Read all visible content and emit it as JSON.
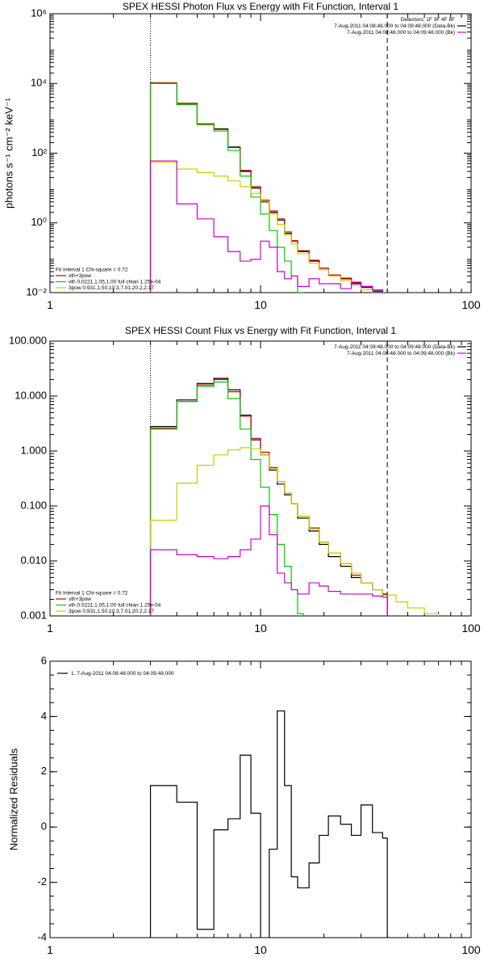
{
  "chart_data": [
    {
      "type": "line",
      "title": "SPEX HESSI Photon Flux vs Energy with Fit Function, Interval 1",
      "xlabel": "",
      "ylabel": "photons s⁻¹ cm⁻² keV⁻¹",
      "xscale": "log",
      "yscale": "log",
      "xlim": [
        1,
        100
      ],
      "ylim": [
        0.01,
        1000000
      ],
      "xticks": [
        {
          "v": 1,
          "label": "1"
        },
        {
          "v": 10,
          "label": "10"
        },
        {
          "v": 100,
          "label": "100"
        }
      ],
      "yticks": [
        {
          "v": 0.01,
          "label": "10⁻²"
        },
        {
          "v": 1,
          "label": "10⁰"
        },
        {
          "v": 100,
          "label": "10²"
        },
        {
          "v": 10000,
          "label": "10⁴"
        },
        {
          "v": 1000000,
          "label": "10⁶"
        }
      ],
      "vlines": [
        {
          "x": 3.0,
          "style": "dotted"
        },
        {
          "x": 40.0,
          "style": "dashed"
        }
      ],
      "legend_topright": [
        {
          "text": "Detectors: 1F 3F 4F 8F",
          "color": "#000000"
        },
        {
          "text": "7-Aug-2011 04:08:48.000 to 04:09:48.000 (Data-Bk)",
          "color": "#000000"
        },
        {
          "text": "7-Aug-2011 04:08:48.000 to 04:09:48.000 (Bk)",
          "color": "#cc00cc"
        }
      ],
      "legend_bottomleft": [
        {
          "text": "Fit Interval 1    Chi-square = 0.72",
          "color": "#000000"
        },
        {
          "text": "vth+3pow",
          "color": "#cc0000"
        },
        {
          "text": "vth 0.0221,1.05,1.00  full chian 1.25e-04",
          "color": "#00cc00"
        },
        {
          "text": "3pow 0.931,1.50,10.3,7.01,20.2,2.17",
          "color": "#cccc00"
        }
      ],
      "series": [
        {
          "name": "Data-Bk",
          "color": "#000000",
          "edges": [
            3,
            4,
            5,
            6,
            7,
            8,
            9,
            10,
            11,
            12,
            13,
            14,
            15,
            17,
            19,
            21,
            24,
            27,
            30,
            34,
            38,
            40
          ],
          "values": [
            10000,
            2500,
            700,
            500,
            150,
            30,
            10,
            4,
            2,
            1.2,
            0.5,
            0.3,
            0.15,
            0.08,
            0.05,
            0.03,
            0.025,
            0.018,
            0.014,
            0.011,
            0.009
          ]
        },
        {
          "name": "vth+3pow",
          "color": "#cc0000",
          "edges": [
            3,
            4,
            5,
            6,
            7,
            8,
            9,
            10,
            11,
            12,
            13,
            14,
            15,
            17,
            19,
            21,
            24,
            27,
            30,
            34,
            38,
            40
          ],
          "values": [
            10500,
            2700,
            700,
            480,
            145,
            32,
            11,
            4.5,
            2.2,
            1.3,
            0.55,
            0.31,
            0.16,
            0.085,
            0.05,
            0.032,
            0.026,
            0.019,
            0.015,
            0.012,
            0.0095
          ]
        },
        {
          "name": "vth",
          "color": "#00cc00",
          "edges": [
            3,
            4,
            5,
            6,
            7,
            8,
            9,
            10,
            11,
            12,
            13,
            14,
            15,
            16
          ],
          "values": [
            10000,
            2500,
            650,
            430,
            120,
            22,
            5.5,
            1.8,
            0.6,
            0.2,
            0.08,
            0.03,
            0.01
          ]
        },
        {
          "name": "3pow",
          "color": "#cccc00",
          "edges": [
            3,
            4,
            5,
            6,
            7,
            8,
            9,
            10,
            11,
            12,
            13,
            14,
            15,
            17,
            19,
            21,
            24,
            27,
            30,
            34,
            38,
            44,
            50
          ],
          "values": [
            55,
            35,
            28,
            22,
            16,
            11,
            7,
            4.2,
            1.8,
            0.9,
            0.45,
            0.25,
            0.13,
            0.07,
            0.045,
            0.03,
            0.022,
            0.016,
            0.012,
            0.0095,
            0.007,
            0.005
          ]
        },
        {
          "name": "Bk",
          "color": "#cc00cc",
          "edges": [
            3,
            4,
            5,
            6,
            7,
            8,
            9,
            10,
            11,
            12,
            13,
            14,
            15,
            17,
            19,
            21,
            24,
            27,
            30,
            34,
            38,
            40
          ],
          "values": [
            60,
            3.5,
            1.3,
            0.4,
            0.15,
            0.08,
            0.09,
            0.3,
            0.2,
            0.04,
            0.025,
            0.03,
            0.015,
            0.025,
            0.018,
            0.018,
            0.013,
            0.02,
            0.015,
            0.012,
            0.01
          ]
        }
      ]
    },
    {
      "type": "line",
      "title": "SPEX HESSI Count Flux vs Energy with Fit Function, Interval 1",
      "xlabel": "",
      "ylabel": "",
      "xscale": "log",
      "yscale": "log",
      "xlim": [
        1,
        100
      ],
      "ylim": [
        0.001,
        100
      ],
      "xticks": [
        {
          "v": 1,
          "label": "1"
        },
        {
          "v": 10,
          "label": "10"
        },
        {
          "v": 100,
          "label": "100"
        }
      ],
      "yticks": [
        {
          "v": 0.001,
          "label": "0.001"
        },
        {
          "v": 0.01,
          "label": "0.010"
        },
        {
          "v": 0.1,
          "label": "0.100"
        },
        {
          "v": 1,
          "label": "1.000"
        },
        {
          "v": 10,
          "label": "10.000"
        },
        {
          "v": 100,
          "label": "100.000"
        }
      ],
      "vlines": [
        {
          "x": 3.0,
          "style": "dotted"
        },
        {
          "x": 40.0,
          "style": "dashed"
        }
      ],
      "legend_topright": [
        {
          "text": "7-Aug-2011 04:08:48.000 to 04:09:48.000 (Data-Bk)",
          "color": "#000000"
        },
        {
          "text": "7-Aug-2011 04:08:48.000 to 04:09:48.000 (Bk)",
          "color": "#cc00cc"
        }
      ],
      "legend_bottomleft": [
        {
          "text": "Fit Interval 1    Chi-square = 0.72",
          "color": "#000000"
        },
        {
          "text": "vth+3pow",
          "color": "#cc0000"
        },
        {
          "text": "vth 0.0221,1.05,1.00  full chian 1.25e-04",
          "color": "#00cc00"
        },
        {
          "text": "3pow 0.931,1.50,10.3,7.01,20.2,2.17",
          "color": "#cccc00"
        }
      ],
      "series": [
        {
          "name": "Data-Bk",
          "color": "#000000",
          "edges": [
            3,
            4,
            5,
            6,
            7,
            8,
            9,
            10,
            11,
            12,
            13,
            14,
            15,
            17,
            19,
            21,
            24,
            27,
            30,
            34,
            38,
            40
          ],
          "values": [
            2.8,
            8.5,
            17,
            21,
            13,
            4.5,
            1.6,
            0.85,
            0.45,
            0.25,
            0.16,
            0.11,
            0.06,
            0.035,
            0.02,
            0.012,
            0.008,
            0.005,
            0.004,
            0.003,
            0.0025
          ]
        },
        {
          "name": "vth+3pow",
          "color": "#cc0000",
          "edges": [
            3,
            4,
            5,
            6,
            7,
            8,
            9,
            10,
            11,
            12,
            13,
            14,
            15,
            17,
            19,
            21,
            24,
            27,
            30,
            34,
            38,
            40
          ],
          "values": [
            2.6,
            8.0,
            16,
            20,
            12,
            4.3,
            1.7,
            0.95,
            0.5,
            0.28,
            0.17,
            0.11,
            0.065,
            0.04,
            0.022,
            0.014,
            0.009,
            0.0055,
            0.004,
            0.003,
            0.0024
          ]
        },
        {
          "name": "vth",
          "color": "#00cc00",
          "edges": [
            3,
            4,
            5,
            6,
            7,
            8,
            9,
            10,
            11,
            12,
            13,
            14,
            15,
            16
          ],
          "values": [
            2.5,
            8.0,
            15,
            18,
            9,
            2.5,
            0.7,
            0.22,
            0.07,
            0.02,
            0.008,
            0.003,
            0.0011
          ]
        },
        {
          "name": "3pow",
          "color": "#cccc00",
          "edges": [
            3,
            4,
            5,
            6,
            7,
            8,
            9,
            10,
            11,
            12,
            13,
            14,
            15,
            17,
            19,
            21,
            24,
            27,
            30,
            34,
            38,
            44,
            50,
            60,
            70
          ],
          "values": [
            0.055,
            0.26,
            0.55,
            0.85,
            1.05,
            1.15,
            1.1,
            0.85,
            0.48,
            0.28,
            0.17,
            0.11,
            0.065,
            0.038,
            0.022,
            0.014,
            0.009,
            0.006,
            0.004,
            0.003,
            0.0024,
            0.0018,
            0.0014,
            0.0011
          ]
        },
        {
          "name": "Bk",
          "color": "#cc00cc",
          "edges": [
            3,
            4,
            5,
            6,
            7,
            8,
            9,
            10,
            11,
            12,
            13,
            14,
            15,
            17,
            19,
            21,
            24,
            27,
            30,
            34,
            38,
            40
          ],
          "values": [
            0.016,
            0.013,
            0.012,
            0.011,
            0.012,
            0.016,
            0.025,
            0.1,
            0.03,
            0.006,
            0.004,
            0.003,
            0.0025,
            0.004,
            0.0035,
            0.0028,
            0.0025,
            0.0025,
            0.0025,
            0.0023,
            0.0022
          ]
        }
      ]
    },
    {
      "type": "line",
      "title": "",
      "xlabel": "",
      "ylabel": "Normalized Residuals",
      "xscale": "log",
      "yscale": "linear",
      "xlim": [
        1,
        100
      ],
      "ylim": [
        -4,
        6
      ],
      "xticks": [
        {
          "v": 1,
          "label": "1"
        },
        {
          "v": 10,
          "label": "10"
        },
        {
          "v": 100,
          "label": "100"
        }
      ],
      "yticks": [
        {
          "v": -4,
          "label": "-4"
        },
        {
          "v": -2,
          "label": "-2"
        },
        {
          "v": 0,
          "label": "0"
        },
        {
          "v": 2,
          "label": "2"
        },
        {
          "v": 4,
          "label": "4"
        },
        {
          "v": 6,
          "label": "6"
        }
      ],
      "legend_topleft": [
        {
          "text": "1.  7-Aug-2011 04:08:48.000 to 04:09:48.000",
          "color": "#000000"
        }
      ],
      "series": [
        {
          "name": "1.",
          "color": "#000000",
          "edges": [
            3,
            4,
            5,
            6,
            7,
            8,
            9,
            10,
            11,
            12,
            13,
            14,
            15,
            17,
            19,
            21,
            24,
            27,
            30,
            34,
            38,
            40
          ],
          "values": [
            1.5,
            0.9,
            -3.7,
            -0.1,
            0.3,
            2.6,
            0.5,
            -4.1,
            -0.8,
            4.2,
            1.5,
            -1.8,
            -2.2,
            -1.3,
            -0.3,
            0.4,
            0.1,
            -0.3,
            0.8,
            -0.2,
            -0.4
          ]
        }
      ]
    }
  ]
}
